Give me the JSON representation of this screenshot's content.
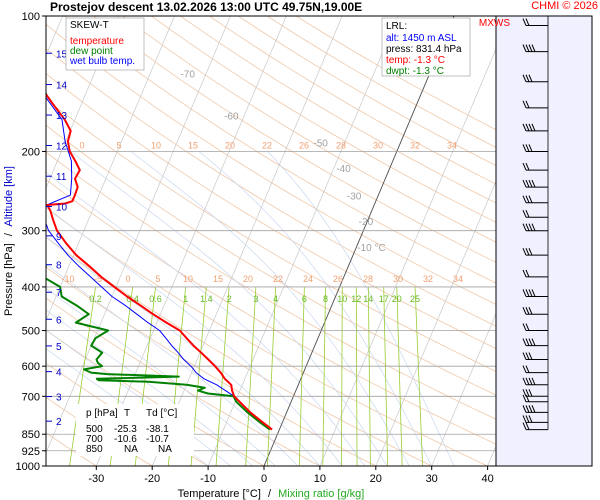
{
  "header": {
    "title": "Prostejov   descent   13.02.2026 13:00 UTC   49.75N,19.00E",
    "copyright": "CHMI © 2026"
  },
  "chart_data": {
    "type": "line",
    "title": "Prostejov descent 13.02.2026 13:00 UTC 49.75N,19.00E",
    "diagram_label": "SKEW-T",
    "xlabel": "Temperature [°C]",
    "xlabel_sep": "/",
    "xlabel2": "Mixing ratio [g/kg]",
    "ylabel": "Pressure [hPa]",
    "ylabel_sep": "/",
    "ylabel2": "Altitude [km]",
    "xlim": [
      -40,
      50
    ],
    "ylim": [
      1000,
      100
    ],
    "y_scale": "log",
    "x_ticks": [
      -30,
      -20,
      -10,
      0,
      10,
      20,
      30,
      40
    ],
    "pressure_ticks": [
      100,
      200,
      300,
      400,
      500,
      600,
      700,
      850,
      925,
      1000
    ],
    "altitude_ticks": [
      {
        "km": "2",
        "p": 795
      },
      {
        "km": "3",
        "p": 701
      },
      {
        "km": "4",
        "p": 617
      },
      {
        "km": "5",
        "p": 541
      },
      {
        "km": "6",
        "p": 472
      },
      {
        "km": "7",
        "p": 411
      },
      {
        "km": "8",
        "p": 357
      },
      {
        "km": "9",
        "p": 308
      },
      {
        "km": "10",
        "p": 265
      },
      {
        "km": "11",
        "p": 227
      },
      {
        "km": "12",
        "p": 194
      },
      {
        "km": "13",
        "p": 166
      },
      {
        "km": "14",
        "p": 142
      },
      {
        "km": "15",
        "p": 121
      }
    ],
    "dry_adiabat_labels": [
      {
        "text": "-80 °C",
        "p": 110,
        "t": -65
      },
      {
        "text": "-70",
        "p": 137,
        "t": -43
      },
      {
        "text": "-60",
        "p": 170,
        "t": -32
      },
      {
        "text": "-50",
        "p": 195,
        "t": -14
      },
      {
        "text": "-40",
        "p": 222,
        "t": -8
      },
      {
        "text": "-30",
        "p": 256,
        "t": -4
      },
      {
        "text": "-20",
        "p": 291,
        "t": 0
      },
      {
        "text": "-10 °C",
        "p": 333,
        "t": 3
      }
    ],
    "mixing_ratio_labels": [
      "0.2",
      "0.4",
      "0.6",
      "1",
      "1.4",
      "2",
      "3",
      "4",
      "6",
      "8",
      "10",
      "12",
      "14",
      "17",
      "20",
      "25"
    ],
    "mixing_ratio_values": [
      0.2,
      0.4,
      0.6,
      1,
      1.4,
      2,
      3,
      4,
      6,
      8,
      10,
      12,
      14,
      17,
      20,
      25
    ],
    "saturation_labels_top": [
      "0",
      "5",
      "10",
      "15",
      "20",
      "22",
      "26",
      "28",
      "30",
      "32",
      "34"
    ],
    "saturation_labels_mid": [
      "-10",
      "-5",
      "0",
      "5",
      "10",
      "15",
      "20",
      "22",
      "24",
      "26",
      "28",
      "30",
      "32",
      "34"
    ],
    "legend": {
      "placement": "top-left",
      "entries": [
        {
          "name": "temperature",
          "color": "#ff0000"
        },
        {
          "name": "dew point",
          "color": "#008000"
        },
        {
          "name": "wet bulb temp.",
          "color": "#0000ff"
        }
      ]
    },
    "lrl": {
      "title": "LRL:",
      "alt": "alt: 1450 m ASL",
      "press": "press: 831.4 hPa",
      "temp": "temp: -1.3 °C",
      "dwpt": "dwpt: -1.3 °C"
    },
    "table": {
      "headers": [
        "p [hPa]",
        "T",
        "Td [°C]"
      ],
      "rows": [
        [
          "500",
          "-25.3",
          "-38.1"
        ],
        [
          "700",
          "-10.6",
          "-10.7"
        ],
        [
          "850",
          "NA",
          "NA"
        ]
      ]
    },
    "mxws_label": "MXWS",
    "series": [
      {
        "name": "temperature",
        "color": "#ff0000",
        "points": [
          [
            830,
            -1.3
          ],
          [
            800,
            -3.5
          ],
          [
            760,
            -6.5
          ],
          [
            720,
            -9.2
          ],
          [
            700,
            -10.6
          ],
          [
            680,
            -11.4
          ],
          [
            660,
            -12.0
          ],
          [
            640,
            -13.6
          ],
          [
            620,
            -14.8
          ],
          [
            600,
            -16.3
          ],
          [
            580,
            -18.0
          ],
          [
            560,
            -19.8
          ],
          [
            540,
            -21.7
          ],
          [
            520,
            -23.5
          ],
          [
            500,
            -25.3
          ],
          [
            480,
            -28.3
          ],
          [
            460,
            -31.3
          ],
          [
            440,
            -34.2
          ],
          [
            420,
            -37.3
          ],
          [
            400,
            -40.3
          ],
          [
            380,
            -43.4
          ],
          [
            360,
            -46.3
          ],
          [
            340,
            -49.5
          ],
          [
            320,
            -52.2
          ],
          [
            300,
            -54.8
          ],
          [
            285,
            -56.2
          ],
          [
            270,
            -57.6
          ],
          [
            263,
            -58.5
          ],
          [
            261,
            -55.4
          ],
          [
            258,
            -54.3
          ],
          [
            250,
            -54.3
          ],
          [
            240,
            -54.4
          ],
          [
            230,
            -55.5
          ],
          [
            220,
            -55.3
          ],
          [
            210,
            -56.8
          ],
          [
            200,
            -58.5
          ],
          [
            190,
            -59.6
          ],
          [
            180,
            -59.9
          ],
          [
            170,
            -61.8
          ],
          [
            160,
            -64.3
          ],
          [
            150,
            -66.9
          ],
          [
            140,
            -69.1
          ],
          [
            130,
            -71.1
          ],
          [
            120,
            -73.1
          ],
          [
            110,
            -75.0
          ],
          [
            100,
            -75.8
          ]
        ]
      },
      {
        "name": "dew point",
        "color": "#008000",
        "points": [
          [
            830,
            -1.7
          ],
          [
            800,
            -4.0
          ],
          [
            760,
            -7.0
          ],
          [
            720,
            -9.8
          ],
          [
            700,
            -10.7
          ],
          [
            690,
            -15.5
          ],
          [
            680,
            -17.5
          ],
          [
            670,
            -16.5
          ],
          [
            660,
            -20.0
          ],
          [
            650,
            -27.0
          ],
          [
            645,
            -36.0
          ],
          [
            640,
            -36.5
          ],
          [
            633,
            -22.0
          ],
          [
            625,
            -35.0
          ],
          [
            620,
            -38.0
          ],
          [
            610,
            -39.5
          ],
          [
            600,
            -36.5
          ],
          [
            590,
            -37.5
          ],
          [
            580,
            -38.0
          ],
          [
            560,
            -37.5
          ],
          [
            540,
            -40.0
          ],
          [
            520,
            -39.8
          ],
          [
            500,
            -38.1
          ],
          [
            480,
            -44.5
          ],
          [
            460,
            -42.8
          ],
          [
            440,
            -45.6
          ],
          [
            420,
            -49.0
          ],
          [
            400,
            -50.0
          ],
          [
            380,
            -53.8
          ],
          [
            360,
            -54.1
          ],
          [
            340,
            -60.1
          ],
          [
            320,
            -61.3
          ],
          [
            300,
            -64.1
          ],
          [
            280,
            -66.4
          ],
          [
            265,
            -69.0
          ],
          [
            250,
            -74.6
          ],
          [
            240,
            -81.1
          ],
          [
            230,
            -85.0
          ],
          [
            220,
            -85.6
          ],
          [
            210,
            -84.5
          ],
          [
            200,
            -84.0
          ],
          [
            190,
            -86.2
          ],
          [
            180,
            -88.9
          ],
          [
            170,
            -89.5
          ],
          [
            160,
            -93.3
          ],
          [
            150,
            -95.6
          ],
          [
            140,
            -99.2
          ],
          [
            130,
            -101.0
          ],
          [
            120,
            -102.6
          ],
          [
            110,
            -106.0
          ],
          [
            100,
            -110.0
          ]
        ]
      },
      {
        "name": "wet bulb temp.",
        "color": "#0000ff",
        "points": [
          [
            830,
            -1.4
          ],
          [
            800,
            -3.6
          ],
          [
            760,
            -6.6
          ],
          [
            720,
            -9.3
          ],
          [
            700,
            -10.6
          ],
          [
            680,
            -12.6
          ],
          [
            660,
            -14.6
          ],
          [
            640,
            -17.3
          ],
          [
            620,
            -19.2
          ],
          [
            600,
            -20.6
          ],
          [
            580,
            -22.4
          ],
          [
            560,
            -23.9
          ],
          [
            540,
            -25.6
          ],
          [
            520,
            -27.2
          ],
          [
            500,
            -28.9
          ],
          [
            480,
            -31.6
          ],
          [
            460,
            -34.2
          ],
          [
            440,
            -36.9
          ],
          [
            420,
            -40.0
          ],
          [
            400,
            -42.6
          ],
          [
            380,
            -45.3
          ],
          [
            360,
            -48.2
          ],
          [
            340,
            -51.0
          ],
          [
            320,
            -53.6
          ],
          [
            300,
            -56.3
          ],
          [
            280,
            -58.2
          ],
          [
            265,
            -59.1
          ],
          [
            250,
            -55.1
          ],
          [
            230,
            -56.1
          ],
          [
            210,
            -57.5
          ],
          [
            190,
            -60.1
          ],
          [
            170,
            -62.3
          ],
          [
            150,
            -67.3
          ],
          [
            130,
            -71.5
          ],
          [
            115,
            -74.0
          ],
          [
            100,
            -76.0
          ]
        ]
      }
    ]
  }
}
